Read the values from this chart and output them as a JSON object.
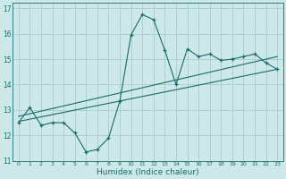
{
  "title": "",
  "xlabel": "Humidex (Indice chaleur)",
  "bg_color": "#cce8e8",
  "grid_color": "#aacccc",
  "line_color": "#1a6b6b",
  "xlim": [
    -0.5,
    23.5
  ],
  "ylim": [
    11,
    17.2
  ],
  "xticks": [
    0,
    1,
    2,
    3,
    4,
    5,
    6,
    7,
    8,
    9,
    10,
    11,
    12,
    13,
    14,
    15,
    16,
    17,
    18,
    19,
    20,
    21,
    22,
    23
  ],
  "yticks": [
    11,
    12,
    13,
    14,
    15,
    16,
    17
  ],
  "main_x": [
    0,
    1,
    2,
    3,
    4,
    5,
    6,
    7,
    8,
    9,
    10,
    11,
    12,
    13,
    14,
    15,
    16,
    17,
    18,
    19,
    20,
    21,
    22,
    23
  ],
  "main_y": [
    12.5,
    13.1,
    12.4,
    12.5,
    12.5,
    12.1,
    11.35,
    11.45,
    11.9,
    13.35,
    15.95,
    16.75,
    16.55,
    15.35,
    14.0,
    15.4,
    15.1,
    15.2,
    14.95,
    15.0,
    15.1,
    15.2,
    14.85,
    14.6
  ],
  "trend1_x": [
    0,
    23
  ],
  "trend1_y": [
    12.55,
    14.6
  ],
  "trend2_x": [
    0,
    23
  ],
  "trend2_y": [
    12.75,
    15.1
  ]
}
